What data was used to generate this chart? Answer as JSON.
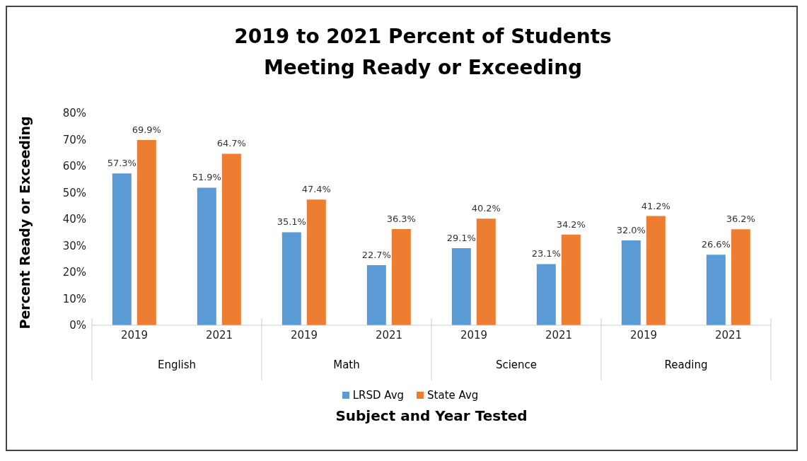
{
  "chart_data": {
    "type": "bar",
    "title": "2019 to 2021 Percent of Students Meeting Ready or Exceeding",
    "xlabel": "Subject and Year Tested",
    "ylabel": "Percent Ready or Exceeding",
    "categories": [
      "2019",
      "2021",
      "2019",
      "2021",
      "2019",
      "2021",
      "2019",
      "2021"
    ],
    "annotations": [
      "English",
      "Math",
      "Science",
      "Reading"
    ],
    "series": [
      {
        "name": "LRSD Avg",
        "color": "#5b9bd5",
        "values": [
          57.3,
          51.9,
          35.1,
          22.7,
          29.1,
          23.1,
          32.0,
          26.6
        ],
        "value_labels": [
          "57.3%",
          "51.9%",
          "35.1%",
          "22.7%",
          "29.1%",
          "23.1%",
          "32.0%",
          "26.6%"
        ]
      },
      {
        "name": "State Avg",
        "color": "#ed7d31",
        "values": [
          69.9,
          64.7,
          47.4,
          36.3,
          40.2,
          34.2,
          41.2,
          36.2
        ],
        "value_labels": [
          "69.9%",
          "64.7%",
          "47.4%",
          "36.3%",
          "40.2%",
          "34.2%",
          "41.2%",
          "36.2%"
        ]
      }
    ],
    "ylim": [
      0,
      80
    ],
    "yticks": [
      {
        "value": 0,
        "label": "0%"
      },
      {
        "value": 10,
        "label": "10%"
      },
      {
        "value": 20,
        "label": "20%"
      },
      {
        "value": 30,
        "label": "30%"
      },
      {
        "value": 40,
        "label": "40%"
      },
      {
        "value": 50,
        "label": "50%"
      },
      {
        "value": 60,
        "label": "60%"
      },
      {
        "value": 70,
        "label": "70%"
      },
      {
        "value": 80,
        "label": "80%"
      }
    ],
    "grid": false,
    "legend": "bottom"
  }
}
